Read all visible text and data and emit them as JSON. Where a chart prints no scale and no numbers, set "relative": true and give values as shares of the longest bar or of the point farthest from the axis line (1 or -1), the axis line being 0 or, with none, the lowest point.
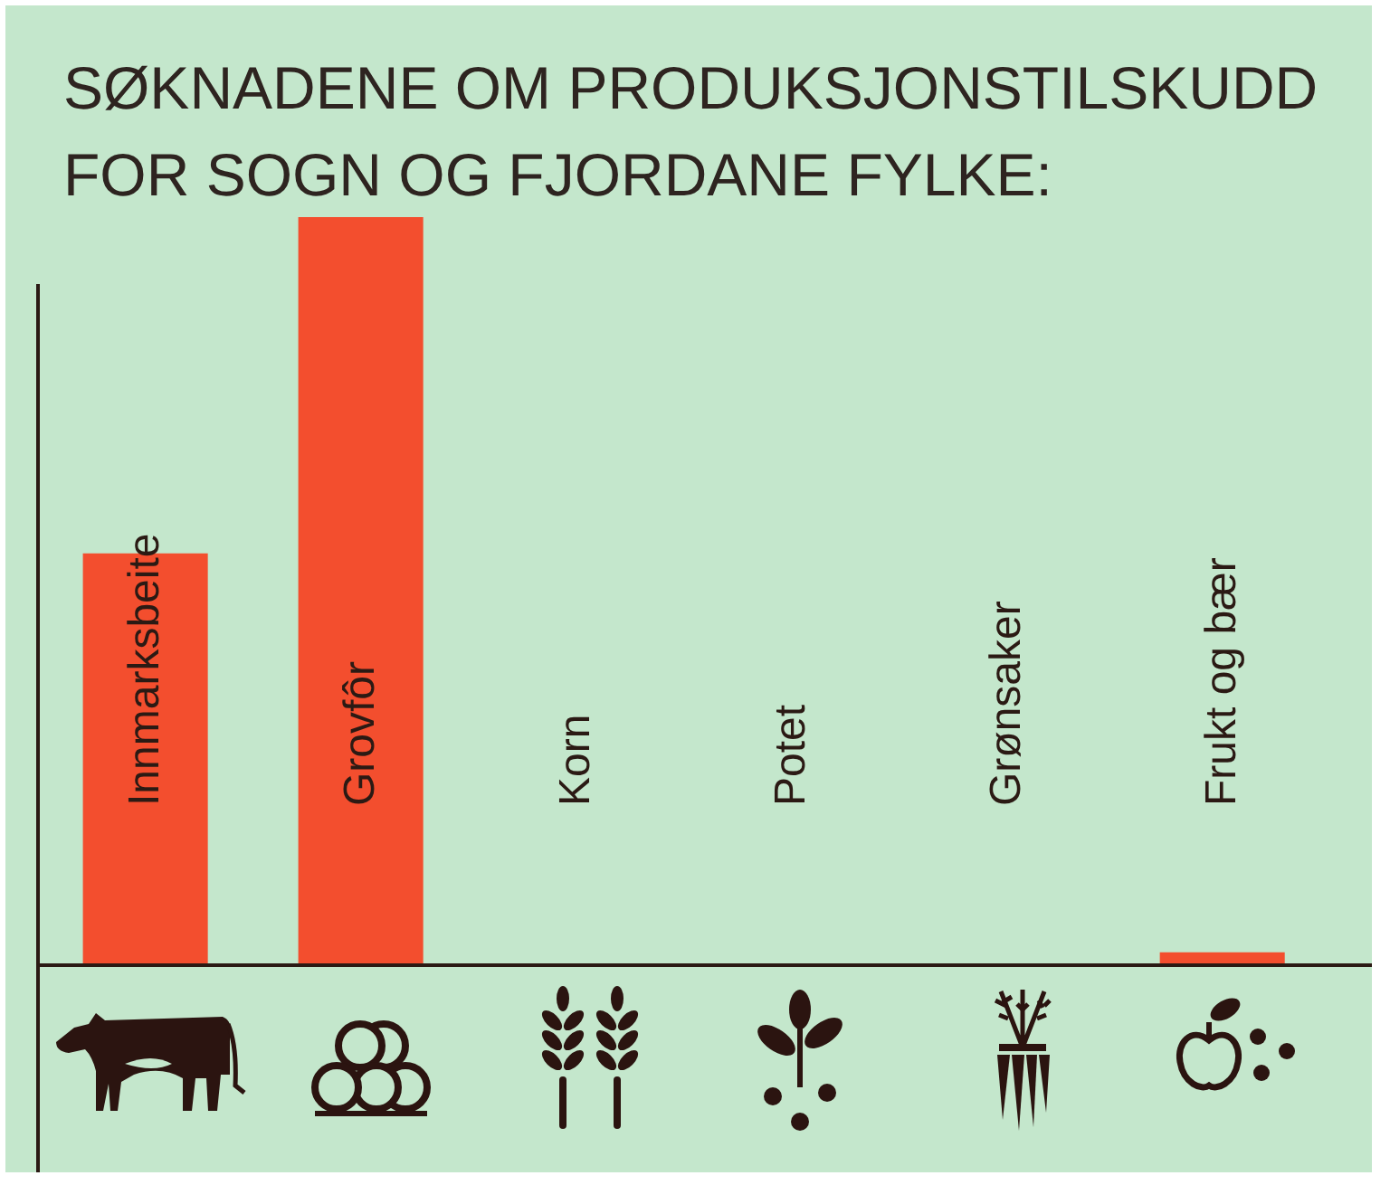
{
  "chart_data": {
    "type": "bar",
    "title": "SØKNADENE OM PRODUKSJONSTILSKUDD FOR SOGN OG FJORDANE FYLKE:",
    "categories": [
      "Innmarksbeite",
      "Grovfôr",
      "Korn",
      "Potet",
      "Grønsaker",
      "Frukt og bær"
    ],
    "values": [
      0.55,
      1,
      null,
      null,
      null,
      0.016
    ],
    "color": "#f34e2e",
    "relative": true
  }
}
